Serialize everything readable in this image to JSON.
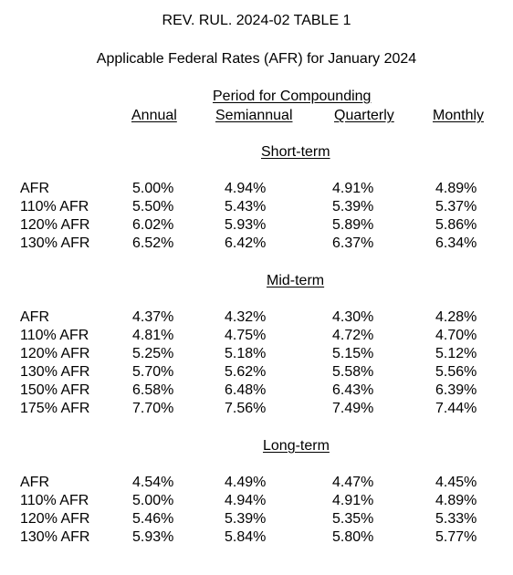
{
  "title": "REV. RUL. 2024-02 TABLE 1",
  "subtitle": "Applicable Federal Rates (AFR) for January 2024",
  "period_header": "Period for Compounding",
  "columns": [
    "Annual",
    "Semiannual",
    "Quarterly",
    "Monthly"
  ],
  "sections": [
    {
      "name": "Short-term",
      "rows": [
        {
          "label": "AFR",
          "values": [
            "5.00%",
            "4.94%",
            "4.91%",
            "4.89%"
          ]
        },
        {
          "label": "110% AFR",
          "values": [
            "5.50%",
            "5.43%",
            "5.39%",
            "5.37%"
          ]
        },
        {
          "label": "120% AFR",
          "values": [
            "6.02%",
            "5.93%",
            "5.89%",
            "5.86%"
          ]
        },
        {
          "label": "130% AFR",
          "values": [
            "6.52%",
            "6.42%",
            "6.37%",
            "6.34%"
          ]
        }
      ]
    },
    {
      "name": "Mid-term",
      "rows": [
        {
          "label": "AFR",
          "values": [
            "4.37%",
            "4.32%",
            "4.30%",
            "4.28%"
          ]
        },
        {
          "label": "110% AFR",
          "values": [
            "4.81%",
            "4.75%",
            "4.72%",
            "4.70%"
          ]
        },
        {
          "label": "120% AFR",
          "values": [
            "5.25%",
            "5.18%",
            "5.15%",
            "5.12%"
          ]
        },
        {
          "label": "130% AFR",
          "values": [
            "5.70%",
            "5.62%",
            "5.58%",
            "5.56%"
          ]
        },
        {
          "label": "150% AFR",
          "values": [
            "6.58%",
            "6.48%",
            "6.43%",
            "6.39%"
          ]
        },
        {
          "label": "175% AFR",
          "values": [
            "7.70%",
            "7.56%",
            "7.49%",
            "7.44%"
          ]
        }
      ]
    },
    {
      "name": "Long-term",
      "rows": [
        {
          "label": "AFR",
          "values": [
            "4.54%",
            "4.49%",
            "4.47%",
            "4.45%"
          ]
        },
        {
          "label": "110% AFR",
          "values": [
            "5.00%",
            "4.94%",
            "4.91%",
            "4.89%"
          ]
        },
        {
          "label": "120% AFR",
          "values": [
            "5.46%",
            "5.39%",
            "5.35%",
            "5.33%"
          ]
        },
        {
          "label": "130% AFR",
          "values": [
            "5.93%",
            "5.84%",
            "5.80%",
            "5.77%"
          ]
        }
      ]
    }
  ]
}
